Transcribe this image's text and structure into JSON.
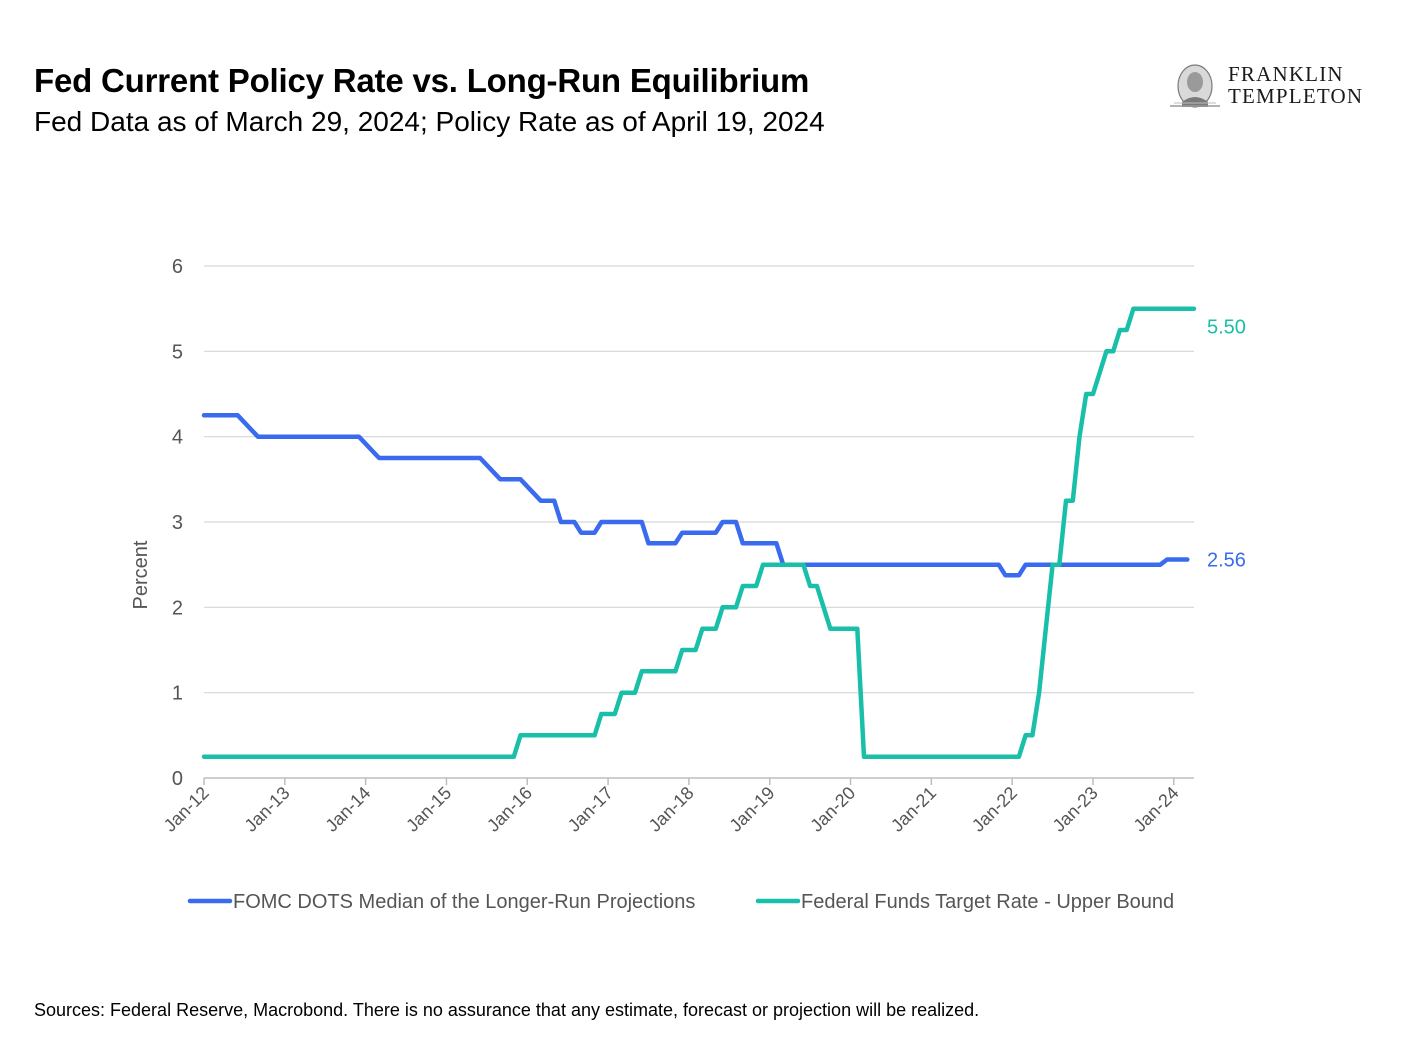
{
  "header": {
    "title": "Fed Current Policy Rate vs. Long-Run Equilibrium",
    "subtitle": "Fed Data as of March 29, 2024; Policy Rate as of April 19, 2024"
  },
  "logo": {
    "line1": "FRANKLIN",
    "line2": "TEMPLETON",
    "icon": "franklin-portrait-icon"
  },
  "footer": {
    "sources": "Sources: Federal Reserve, Macrobond. There is no assurance that any estimate, forecast or projection will be realized."
  },
  "chart_data": {
    "type": "line",
    "ylabel": "Percent",
    "ylim": [
      0,
      6
    ],
    "yticks": [
      0,
      1,
      2,
      3,
      4,
      5,
      6
    ],
    "xlim": [
      "2012-01",
      "2024-04"
    ],
    "xticks": [
      "Jan-12",
      "Jan-13",
      "Jan-14",
      "Jan-15",
      "Jan-16",
      "Jan-17",
      "Jan-18",
      "Jan-19",
      "Jan-20",
      "Jan-21",
      "Jan-22",
      "Jan-23",
      "Jan-24"
    ],
    "grid": true,
    "legend_position": "bottom",
    "series": [
      {
        "name": "FOMC DOTS Median of the Longer-Run Projections",
        "color": "#3a6bef",
        "end_label": "2.56",
        "points": [
          [
            "2012-01",
            4.25
          ],
          [
            "2012-06",
            4.25
          ],
          [
            "2012-09",
            4.0
          ],
          [
            "2013-12",
            4.0
          ],
          [
            "2014-03",
            3.75
          ],
          [
            "2015-06",
            3.75
          ],
          [
            "2015-09",
            3.5
          ],
          [
            "2015-12",
            3.5
          ],
          [
            "2016-03",
            3.25
          ],
          [
            "2016-05",
            3.25
          ],
          [
            "2016-06",
            3.0
          ],
          [
            "2016-08",
            3.0
          ],
          [
            "2016-09",
            2.875
          ],
          [
            "2016-11",
            2.875
          ],
          [
            "2016-12",
            3.0
          ],
          [
            "2017-06",
            3.0
          ],
          [
            "2017-07",
            2.75
          ],
          [
            "2017-11",
            2.75
          ],
          [
            "2017-12",
            2.875
          ],
          [
            "2018-05",
            2.875
          ],
          [
            "2018-06",
            3.0
          ],
          [
            "2018-08",
            3.0
          ],
          [
            "2018-09",
            2.75
          ],
          [
            "2019-02",
            2.75
          ],
          [
            "2019-03",
            2.5
          ],
          [
            "2021-11",
            2.5
          ],
          [
            "2021-12",
            2.375
          ],
          [
            "2022-02",
            2.375
          ],
          [
            "2022-03",
            2.5
          ],
          [
            "2023-11",
            2.5
          ],
          [
            "2023-12",
            2.56
          ],
          [
            "2024-03",
            2.56
          ]
        ]
      },
      {
        "name": "Federal Funds Target Rate - Upper Bound",
        "color": "#19bfa9",
        "end_label": "5.50",
        "points": [
          [
            "2012-01",
            0.25
          ],
          [
            "2015-11",
            0.25
          ],
          [
            "2015-12",
            0.5
          ],
          [
            "2016-11",
            0.5
          ],
          [
            "2016-12",
            0.75
          ],
          [
            "2017-02",
            0.75
          ],
          [
            "2017-03",
            1.0
          ],
          [
            "2017-05",
            1.0
          ],
          [
            "2017-06",
            1.25
          ],
          [
            "2017-11",
            1.25
          ],
          [
            "2017-12",
            1.5
          ],
          [
            "2018-02",
            1.5
          ],
          [
            "2018-03",
            1.75
          ],
          [
            "2018-05",
            1.75
          ],
          [
            "2018-06",
            2.0
          ],
          [
            "2018-08",
            2.0
          ],
          [
            "2018-09",
            2.25
          ],
          [
            "2018-11",
            2.25
          ],
          [
            "2018-12",
            2.5
          ],
          [
            "2019-06",
            2.5
          ],
          [
            "2019-07",
            2.25
          ],
          [
            "2019-08",
            2.25
          ],
          [
            "2019-09",
            2.0
          ],
          [
            "2019-10",
            1.75
          ],
          [
            "2020-02",
            1.75
          ],
          [
            "2020-03",
            0.25
          ],
          [
            "2022-02",
            0.25
          ],
          [
            "2022-03",
            0.5
          ],
          [
            "2022-04",
            0.5
          ],
          [
            "2022-05",
            1.0
          ],
          [
            "2022-06",
            1.75
          ],
          [
            "2022-07",
            2.5
          ],
          [
            "2022-08",
            2.5
          ],
          [
            "2022-09",
            3.25
          ],
          [
            "2022-10",
            3.25
          ],
          [
            "2022-11",
            4.0
          ],
          [
            "2022-12",
            4.5
          ],
          [
            "2023-01",
            4.5
          ],
          [
            "2023-02",
            4.75
          ],
          [
            "2023-03",
            5.0
          ],
          [
            "2023-04",
            5.0
          ],
          [
            "2023-05",
            5.25
          ],
          [
            "2023-06",
            5.25
          ],
          [
            "2023-07",
            5.5
          ],
          [
            "2024-04",
            5.5
          ]
        ]
      }
    ]
  }
}
